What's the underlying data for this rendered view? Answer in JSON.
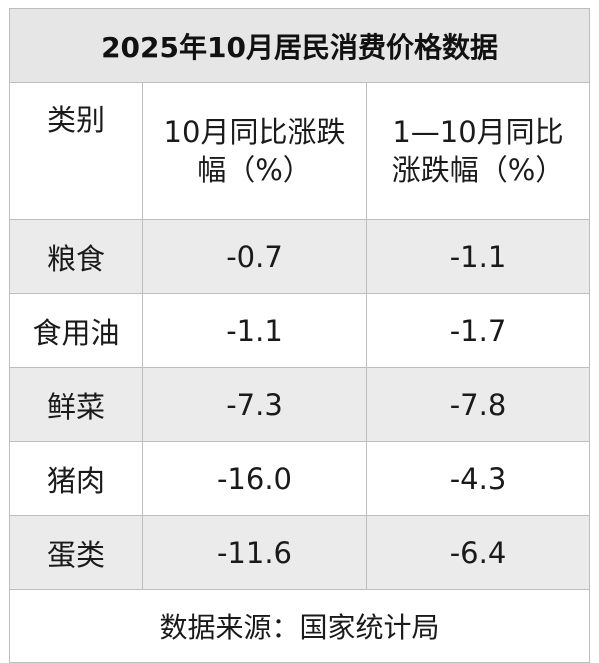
{
  "title": "2025年10月居民消费价格数据",
  "headers": {
    "category": "类别",
    "col1_line1": "10月同比涨跌",
    "col1_line2": "幅（%）",
    "col2_line1": "1—10月同比",
    "col2_line2": "涨跌幅（%）"
  },
  "rows": [
    {
      "category": "粮食",
      "oct_yoy": "-0.7",
      "ytd_yoy": "-1.1"
    },
    {
      "category": "食用油",
      "oct_yoy": "-1.1",
      "ytd_yoy": "-1.7"
    },
    {
      "category": "鲜菜",
      "oct_yoy": "-7.3",
      "ytd_yoy": "-7.8"
    },
    {
      "category": "猪肉",
      "oct_yoy": "-16.0",
      "ytd_yoy": "-4.3"
    },
    {
      "category": "蛋类",
      "oct_yoy": "-11.6",
      "ytd_yoy": "-6.4"
    }
  ],
  "source": "数据来源：国家统计局",
  "colors": {
    "title_bg": "#e6e6e6",
    "shaded_row_bg": "#ebebeb",
    "border": "#bdbdbd"
  }
}
